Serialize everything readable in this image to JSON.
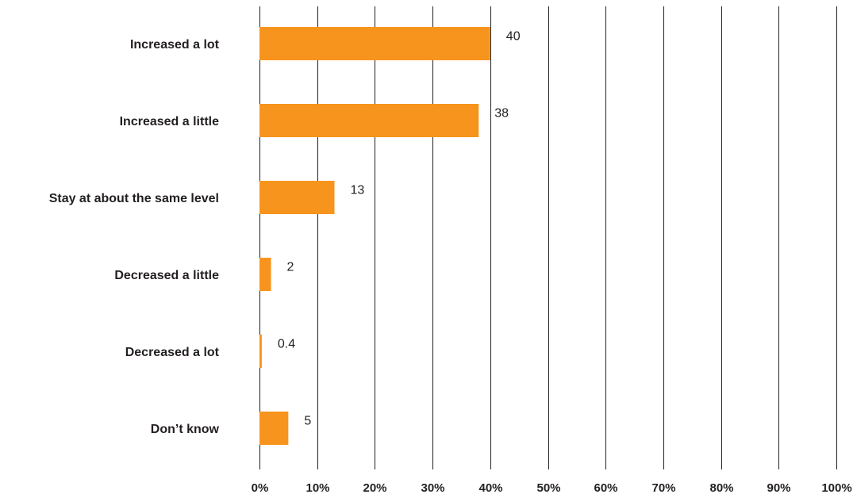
{
  "chart_data": {
    "type": "bar",
    "orientation": "horizontal",
    "categories": [
      "Increased a lot",
      "Increased a little",
      "Stay at about the same level",
      "Decreased a little",
      "Decreased a lot",
      "Don’t know"
    ],
    "values": [
      40,
      38,
      13,
      2,
      0.4,
      5
    ],
    "data_labels": [
      "40",
      "38",
      "13",
      "2",
      "0.4",
      "5"
    ],
    "xlim": [
      0,
      100
    ],
    "x_ticks": [
      0,
      10,
      20,
      30,
      40,
      50,
      60,
      70,
      80,
      90,
      100
    ],
    "x_tick_labels": [
      "0%",
      "10%",
      "20%",
      "30%",
      "40%",
      "50%",
      "60%",
      "70%",
      "80%",
      "90%",
      "100%"
    ],
    "title": "",
    "xlabel": "",
    "ylabel": "",
    "grid": "vertical",
    "legend": "none",
    "bar_color": "#f7941d"
  }
}
